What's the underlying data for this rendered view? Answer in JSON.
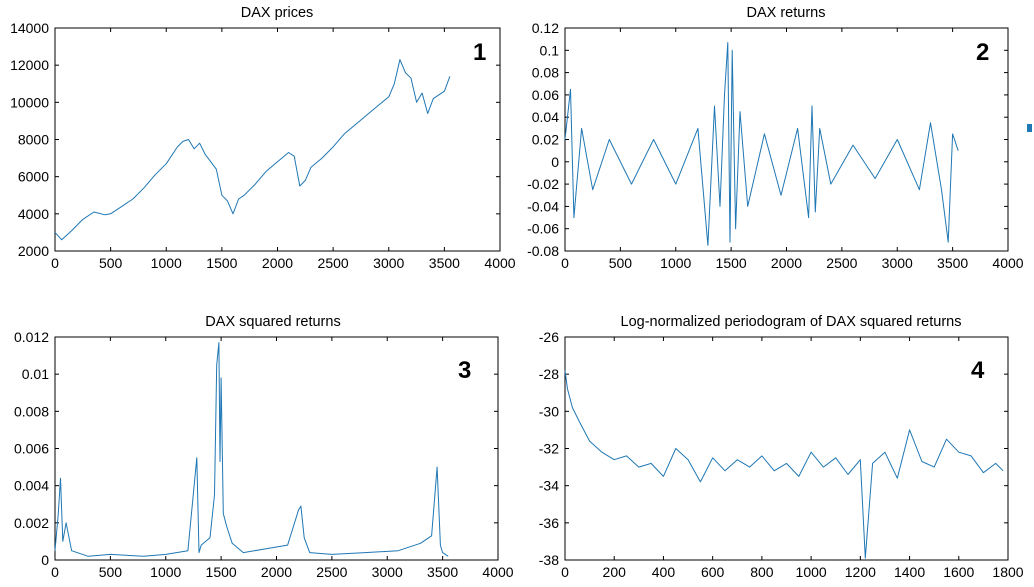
{
  "colors": {
    "series": "#1f77b4",
    "axis": "#000000",
    "background": "#ffffff"
  },
  "chart_data": [
    {
      "type": "line",
      "title": "DAX prices",
      "panel_label": "1",
      "xlabel": "",
      "ylabel": "",
      "xlim": [
        0,
        4000
      ],
      "ylim": [
        2000,
        14000
      ],
      "xticks": [
        0,
        500,
        1000,
        1500,
        2000,
        2500,
        3000,
        3500,
        4000
      ],
      "yticks": [
        2000,
        4000,
        6000,
        8000,
        10000,
        12000,
        14000
      ],
      "ytick_labels": [
        "2000",
        "4000",
        "6000",
        "8000",
        "10000",
        "12000",
        "14000"
      ],
      "grid": false,
      "series": [
        {
          "x": [
            0,
            60,
            150,
            250,
            350,
            450,
            500,
            600,
            700,
            800,
            900,
            1000,
            1100,
            1150,
            1200,
            1250,
            1300,
            1350,
            1400,
            1450,
            1500,
            1550,
            1600,
            1650,
            1700,
            1800,
            1900,
            2000,
            2100,
            2150,
            2200,
            2250,
            2300,
            2400,
            2500,
            2600,
            2700,
            2800,
            2900,
            3000,
            3050,
            3100,
            3150,
            3200,
            3250,
            3300,
            3350,
            3400,
            3450,
            3500,
            3550
          ],
          "y": [
            3000,
            2600,
            3100,
            3700,
            4100,
            3950,
            4000,
            4400,
            4800,
            5400,
            6100,
            6700,
            7600,
            7900,
            8000,
            7500,
            7800,
            7200,
            6800,
            6400,
            5000,
            4700,
            4000,
            4800,
            5000,
            5600,
            6300,
            6800,
            7300,
            7100,
            5500,
            5800,
            6500,
            7000,
            7600,
            8300,
            8800,
            9300,
            9800,
            10300,
            11000,
            12300,
            11600,
            11300,
            10000,
            10500,
            9400,
            10200,
            10400,
            10600,
            11400
          ]
        }
      ]
    },
    {
      "type": "line",
      "title": "DAX returns",
      "panel_label": "2",
      "xlabel": "",
      "ylabel": "",
      "xlim": [
        0,
        4000
      ],
      "ylim": [
        -0.08,
        0.12
      ],
      "xticks": [
        0,
        500,
        1000,
        1500,
        2000,
        2500,
        3000,
        3500,
        4000
      ],
      "yticks": [
        -0.08,
        -0.06,
        -0.04,
        -0.02,
        0,
        0.02,
        0.04,
        0.06,
        0.08,
        0.1,
        0.12
      ],
      "ytick_labels": [
        "-0.08",
        "-0.06",
        "-0.04",
        "-0.02",
        "0",
        "0.02",
        "0.04",
        "0.06",
        "0.08",
        "0.1",
        "0.12"
      ],
      "grid": false,
      "series": [
        {
          "x": [
            0,
            50,
            80,
            150,
            250,
            400,
            600,
            800,
            1000,
            1200,
            1290,
            1350,
            1400,
            1440,
            1470,
            1490,
            1510,
            1540,
            1580,
            1650,
            1800,
            1950,
            2100,
            2200,
            2230,
            2260,
            2300,
            2400,
            2600,
            2800,
            3000,
            3200,
            3300,
            3400,
            3460,
            3500,
            3550
          ],
          "y": [
            0.02,
            0.065,
            -0.05,
            0.03,
            -0.025,
            0.02,
            -0.02,
            0.02,
            -0.02,
            0.03,
            -0.075,
            0.05,
            -0.04,
            0.06,
            0.107,
            -0.072,
            0.1,
            -0.06,
            0.045,
            -0.04,
            0.025,
            -0.03,
            0.03,
            -0.05,
            0.05,
            -0.045,
            0.03,
            -0.02,
            0.015,
            -0.015,
            0.02,
            -0.025,
            0.035,
            -0.025,
            -0.072,
            0.025,
            0.01
          ]
        }
      ]
    },
    {
      "type": "line",
      "title": "DAX squared returns",
      "panel_label": "3",
      "xlabel": "",
      "ylabel": "",
      "xlim": [
        0,
        4000
      ],
      "ylim": [
        0,
        0.012
      ],
      "xticks": [
        0,
        500,
        1000,
        1500,
        2000,
        2500,
        3000,
        3500,
        4000
      ],
      "yticks": [
        0,
        0.002,
        0.004,
        0.006,
        0.008,
        0.01,
        0.012
      ],
      "ytick_labels": [
        "0",
        "0.002",
        "0.004",
        "0.006",
        "0.008",
        "0.01",
        "0.012"
      ],
      "grid": false,
      "series": [
        {
          "x": [
            0,
            30,
            50,
            70,
            100,
            150,
            300,
            500,
            800,
            1000,
            1200,
            1280,
            1300,
            1320,
            1400,
            1440,
            1460,
            1480,
            1490,
            1500,
            1520,
            1550,
            1600,
            1700,
            1900,
            2100,
            2200,
            2220,
            2250,
            2300,
            2500,
            2800,
            3100,
            3300,
            3400,
            3450,
            3480,
            3500,
            3550
          ],
          "y": [
            0.0005,
            0.0025,
            0.0044,
            0.001,
            0.002,
            0.0005,
            0.0002,
            0.0003,
            0.0002,
            0.0003,
            0.0005,
            0.0055,
            0.0004,
            0.0008,
            0.0012,
            0.0035,
            0.0105,
            0.0117,
            0.0053,
            0.0098,
            0.0025,
            0.0018,
            0.0009,
            0.0004,
            0.0006,
            0.0008,
            0.0027,
            0.0029,
            0.0012,
            0.0004,
            0.0003,
            0.0004,
            0.0005,
            0.0009,
            0.0013,
            0.005,
            0.0008,
            0.0004,
            0.0002
          ]
        }
      ]
    },
    {
      "type": "line",
      "title": "Log-normalized periodogram of DAX squared returns",
      "panel_label": "4",
      "xlabel": "",
      "ylabel": "",
      "xlim": [
        0,
        1800
      ],
      "ylim": [
        -38,
        -26
      ],
      "xticks": [
        0,
        200,
        400,
        600,
        800,
        1000,
        1200,
        1400,
        1600,
        1800
      ],
      "yticks": [
        -38,
        -36,
        -34,
        -32,
        -30,
        -28,
        -26
      ],
      "ytick_labels": [
        "-38",
        "-36",
        "-34",
        "-32",
        "-30",
        "-28",
        "-26"
      ],
      "grid": false,
      "series": [
        {
          "x": [
            0,
            10,
            30,
            60,
            100,
            150,
            200,
            250,
            300,
            350,
            400,
            450,
            500,
            550,
            600,
            650,
            700,
            750,
            800,
            850,
            900,
            950,
            1000,
            1050,
            1100,
            1150,
            1200,
            1220,
            1250,
            1300,
            1350,
            1400,
            1450,
            1500,
            1550,
            1600,
            1650,
            1700,
            1750,
            1780
          ],
          "y": [
            -27.8,
            -28.8,
            -29.8,
            -30.6,
            -31.6,
            -32.2,
            -32.6,
            -32.4,
            -33.0,
            -32.8,
            -33.5,
            -32.0,
            -32.6,
            -33.8,
            -32.5,
            -33.2,
            -32.6,
            -33.0,
            -32.4,
            -33.2,
            -32.8,
            -33.5,
            -32.2,
            -33.0,
            -32.5,
            -33.4,
            -32.6,
            -37.9,
            -32.8,
            -32.2,
            -33.6,
            -31.0,
            -32.7,
            -33.0,
            -31.5,
            -32.2,
            -32.4,
            -33.3,
            -32.8,
            -33.2
          ]
        }
      ]
    }
  ]
}
